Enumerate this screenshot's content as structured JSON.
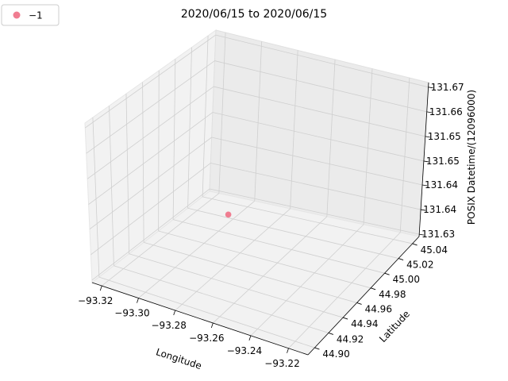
{
  "chart_data": {
    "type": "scatter3d",
    "title": "2020/06/15 to 2020/06/15",
    "xlabel": "Longitude",
    "ylabel": "Latitude",
    "zlabel": "POSIX Datetime/(12096000)",
    "x_ticks": [
      "−93.32",
      "−93.30",
      "−93.28",
      "−93.26",
      "−93.24",
      "−93.22"
    ],
    "y_ticks": [
      "44.90",
      "44.92",
      "44.94",
      "44.96",
      "44.98",
      "45.00",
      "45.02",
      "45.04"
    ],
    "z_ticks": [
      "131.63",
      "131.64",
      "131.64",
      "131.65",
      "131.65",
      "131.66",
      "131.67"
    ],
    "xlim": [
      -93.33,
      -93.21
    ],
    "ylim": [
      44.89,
      45.05
    ],
    "zlim": [
      131.628,
      131.675
    ],
    "series": [
      {
        "name": "−1",
        "color": "#f07d91",
        "points": [
          {
            "x": -93.29,
            "y": 44.98,
            "z": 131.64
          }
        ]
      }
    ],
    "legend": "top-left",
    "grid": true
  }
}
